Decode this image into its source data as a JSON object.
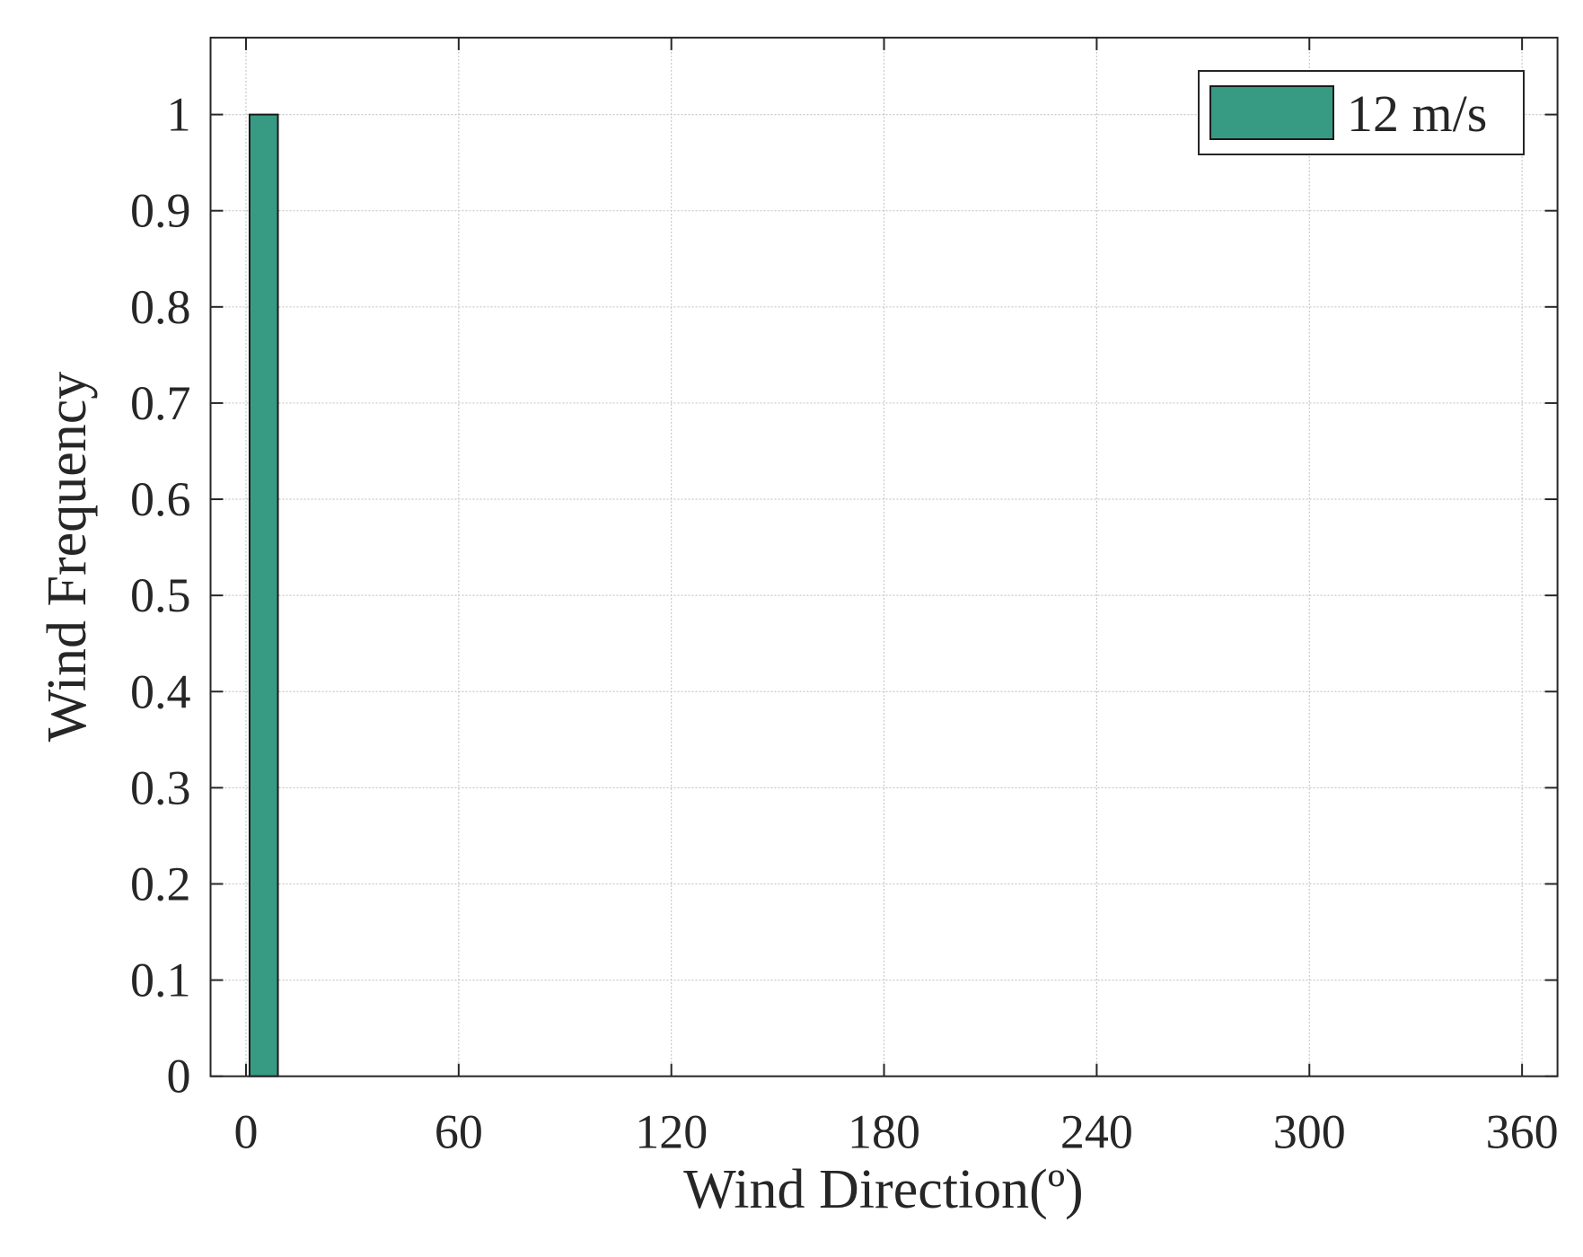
{
  "chart_data": {
    "type": "bar",
    "x": [
      5
    ],
    "series": [
      {
        "name": "12 m/s",
        "color": "#379b83",
        "values": [
          1
        ]
      }
    ],
    "xlabel": "Wind Direction(º)",
    "ylabel": "Wind Frequency",
    "xlim": [
      -10,
      370
    ],
    "xticks": [
      0,
      60,
      120,
      180,
      240,
      300,
      360
    ],
    "ylim": [
      0,
      1.08
    ],
    "yticks": [
      0,
      0.1,
      0.2,
      0.3,
      0.4,
      0.5,
      0.6,
      0.7,
      0.8,
      0.9,
      1
    ],
    "grid": true,
    "legend": "upper right"
  }
}
